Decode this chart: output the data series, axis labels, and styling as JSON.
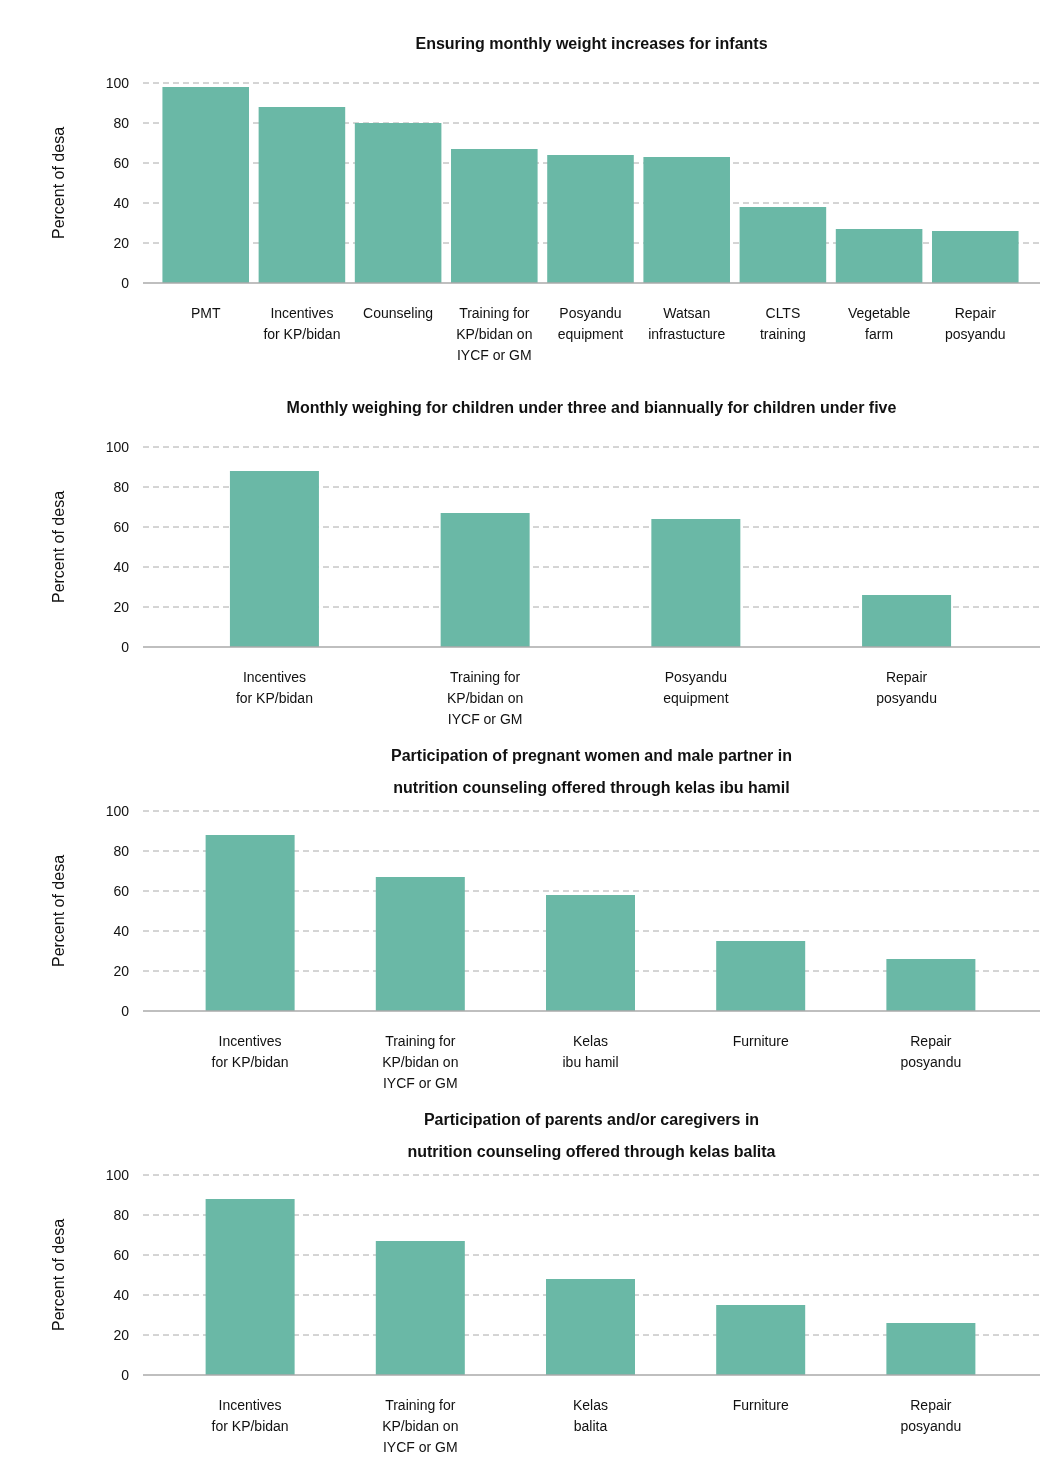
{
  "chart_data": [
    {
      "type": "bar",
      "title": "Ensuring monthly weight increases for infants",
      "ylabel": "Percent of desa",
      "categories": [
        "PMT",
        "Incentives\nfor KP/bidan",
        "Counseling",
        "Training for\nKP/bidan on\nIYCF or GM",
        "Posyandu\nequipment",
        "Watsan\ninfrastucture",
        "CLTS\ntraining",
        "Vegetable\nfarm",
        "Repair\nposyandu"
      ],
      "values": [
        98,
        88,
        80,
        67,
        64,
        63,
        38,
        27,
        26
      ],
      "color": "#6ab8a6",
      "ylim": [
        0,
        100
      ],
      "yticks": [
        0,
        20,
        40,
        60,
        80,
        100
      ],
      "grid": "y",
      "legend": false
    },
    {
      "type": "bar",
      "title": "Monthly weighing for children under three and biannually for children under five",
      "ylabel": "Percent of desa",
      "categories": [
        "Incentives\nfor KP/bidan",
        "Training for\nKP/bidan on\nIYCF or GM",
        "Posyandu\nequipment",
        "Repair\nposyandu"
      ],
      "values": [
        88,
        67,
        64,
        26
      ],
      "color": "#6ab8a6",
      "ylim": [
        0,
        100
      ],
      "yticks": [
        0,
        20,
        40,
        60,
        80,
        100
      ],
      "grid": "y",
      "legend": false
    },
    {
      "type": "bar",
      "title": "Participation of pregnant women and male partner in\nnutrition counseling offered through kelas ibu hamil",
      "ylabel": "Percent of desa",
      "categories": [
        "Incentives\nfor KP/bidan",
        "Training for\nKP/bidan on\nIYCF or GM",
        "Kelas\nibu hamil",
        "Furniture",
        "Repair\nposyandu"
      ],
      "values": [
        88,
        67,
        58,
        35,
        26
      ],
      "color": "#6ab8a6",
      "ylim": [
        0,
        100
      ],
      "yticks": [
        0,
        20,
        40,
        60,
        80,
        100
      ],
      "grid": "y",
      "legend": false
    },
    {
      "type": "bar",
      "title": "Participation of parents and/or caregivers in\nnutrition counseling offered through kelas balita",
      "ylabel": "Percent of desa",
      "categories": [
        "Incentives\nfor KP/bidan",
        "Training for\nKP/bidan on\nIYCF or GM",
        "Kelas\nbalita",
        "Furniture",
        "Repair\nposyandu"
      ],
      "values": [
        88,
        67,
        48,
        35,
        26
      ],
      "color": "#6ab8a6",
      "ylim": [
        0,
        100
      ],
      "yticks": [
        0,
        20,
        40,
        60,
        80,
        100
      ],
      "grid": "y",
      "legend": false
    }
  ]
}
